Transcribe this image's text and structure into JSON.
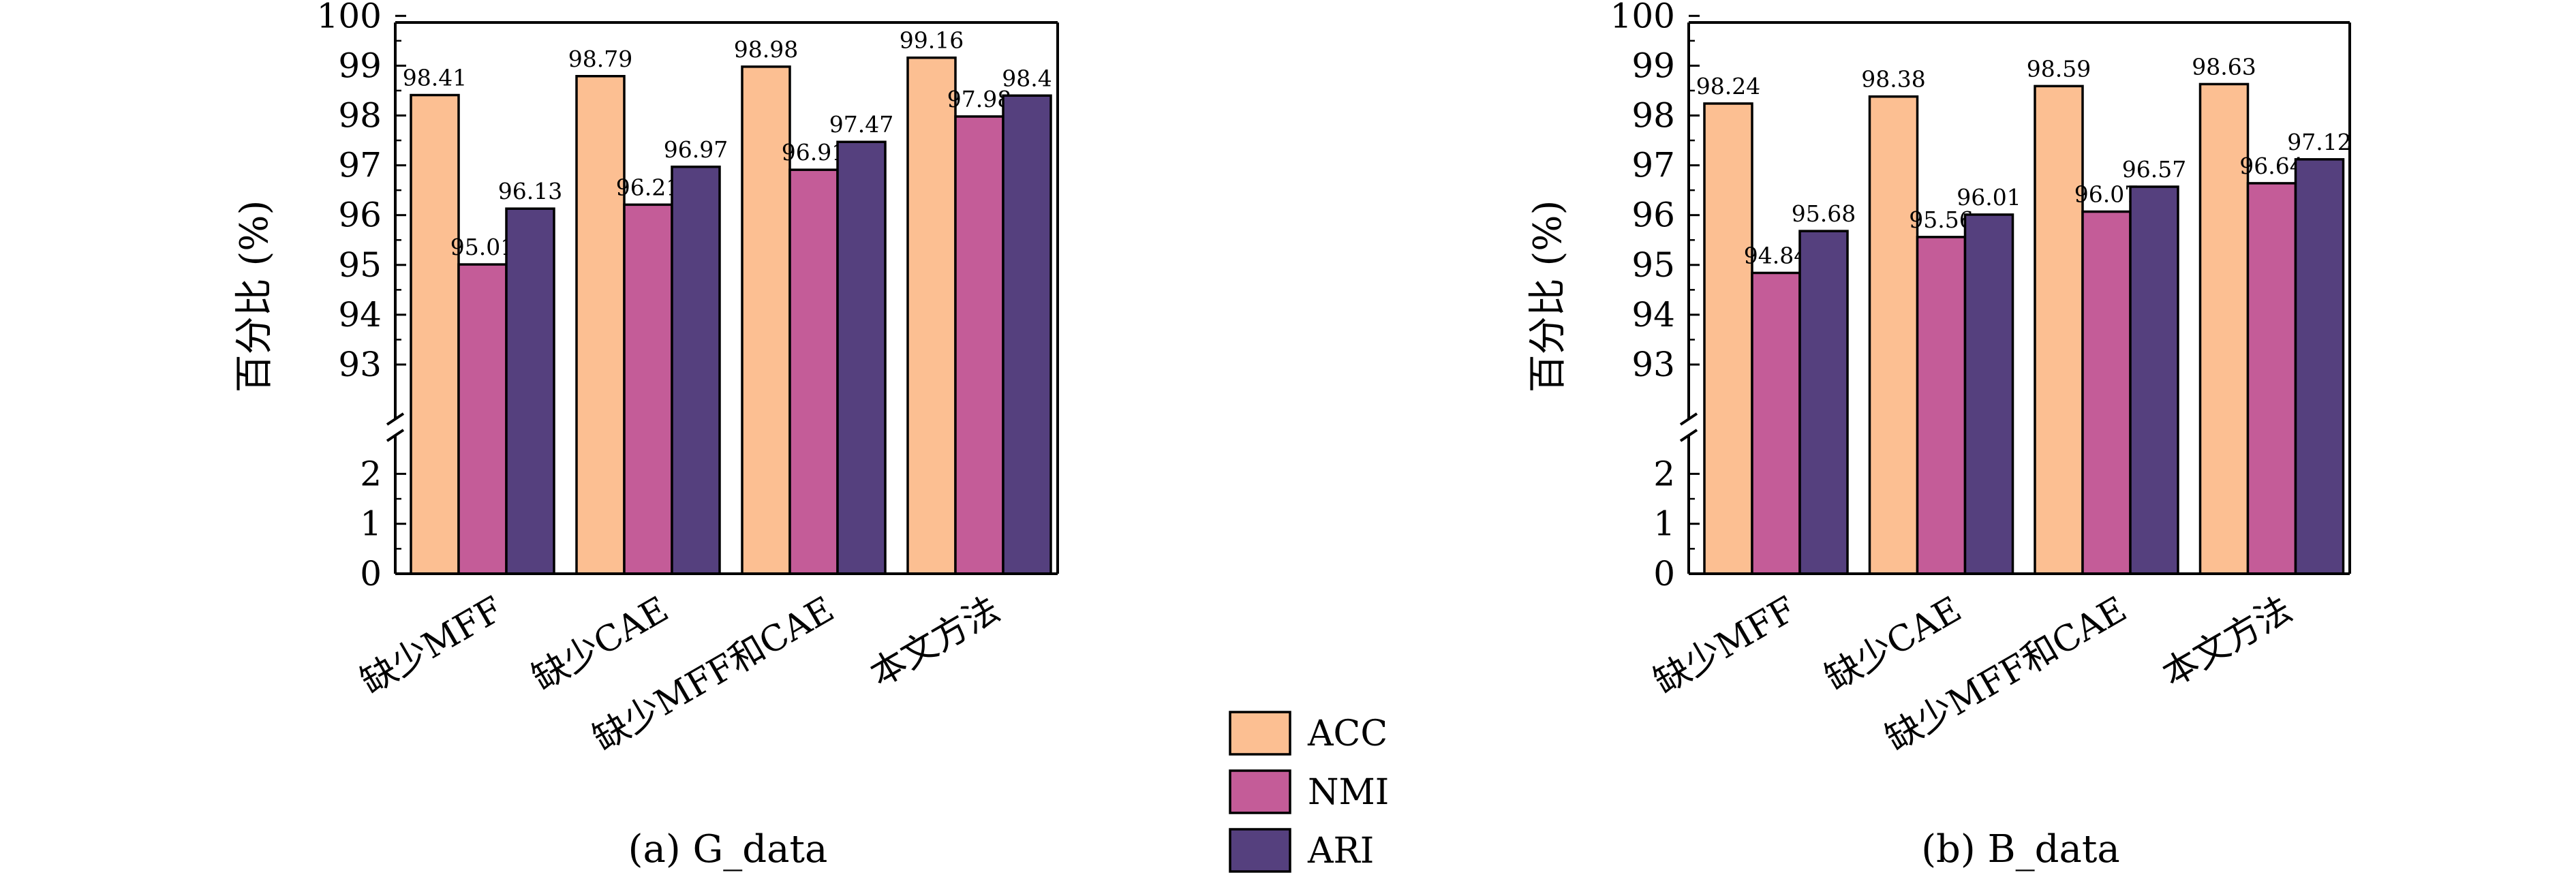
{
  "chart_data": [
    {
      "type": "bar",
      "title": "",
      "caption": "(a) G_data",
      "xlabel": "",
      "ylabel": "百分比 (%)",
      "categories": [
        "缺少MFF",
        "缺少CAE",
        "缺少MFF和CAE",
        "本文方法"
      ],
      "series": [
        {
          "name": "ACC",
          "values": [
            98.41,
            98.79,
            98.98,
            99.16
          ],
          "labels": [
            "98.41",
            "98.79",
            "98.98",
            "99.16"
          ]
        },
        {
          "name": "NMI",
          "values": [
            95.01,
            96.21,
            96.91,
            97.98
          ],
          "labels": [
            "95.01",
            "96.21",
            "96.91",
            "97.98"
          ]
        },
        {
          "name": "ARI",
          "values": [
            96.13,
            96.97,
            97.47,
            98.4
          ],
          "labels": [
            "96.13",
            "96.97",
            "97.47",
            "98.4"
          ]
        }
      ],
      "ylim": [
        0,
        100
      ],
      "axis_break": [
        2,
        93
      ],
      "yticks_lower": [
        0,
        1,
        2
      ],
      "yticks_upper": [
        93,
        94,
        95,
        96,
        97,
        98,
        99,
        100
      ],
      "grid": false
    },
    {
      "type": "bar",
      "title": "",
      "caption": "(b) B_data",
      "xlabel": "",
      "ylabel": "百分比 (%)",
      "categories": [
        "缺少MFF",
        "缺少CAE",
        "缺少MFF和CAE",
        "本文方法"
      ],
      "series": [
        {
          "name": "ACC",
          "values": [
            98.24,
            98.38,
            98.59,
            98.63
          ],
          "labels": [
            "98.24",
            "98.38",
            "98.59",
            "98.63"
          ]
        },
        {
          "name": "NMI",
          "values": [
            94.84,
            95.56,
            96.07,
            96.64
          ],
          "labels": [
            "94.84",
            "95.56",
            "96.07",
            "96.64"
          ]
        },
        {
          "name": "ARI",
          "values": [
            95.68,
            96.01,
            96.57,
            97.12
          ],
          "labels": [
            "95.68",
            "96.01",
            "96.57",
            "97.12"
          ]
        }
      ],
      "ylim": [
        0,
        100
      ],
      "axis_break": [
        2,
        93
      ],
      "yticks_lower": [
        0,
        1,
        2
      ],
      "yticks_upper": [
        93,
        94,
        95,
        96,
        97,
        98,
        99,
        100
      ],
      "grid": false
    }
  ],
  "legend": {
    "placement": "bottom-center",
    "entries": [
      "ACC",
      "NMI",
      "ARI"
    ]
  },
  "colors": {
    "ACC": "#fcbf92",
    "NMI": "#c45c98",
    "ARI": "#55407e"
  }
}
